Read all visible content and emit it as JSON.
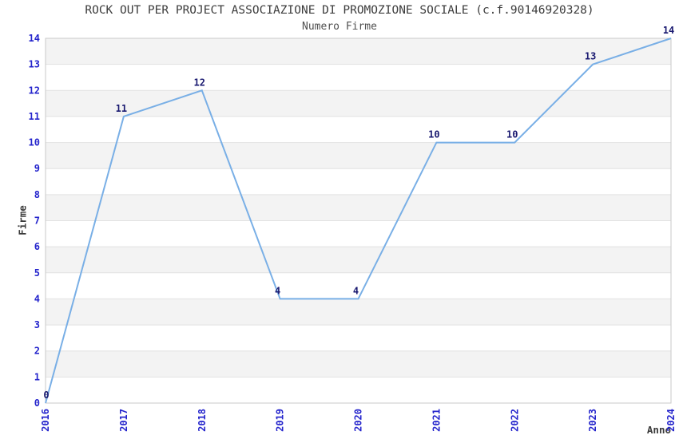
{
  "chart_data": {
    "type": "line",
    "title": "ROCK OUT PER PROJECT ASSOCIAZIONE DI PROMOZIONE SOCIALE (c.f.90146920328)",
    "subtitle": "Numero Firme",
    "xlabel": "Anno",
    "ylabel": "Firme",
    "categories": [
      "2016",
      "2017",
      "2018",
      "2019",
      "2020",
      "2021",
      "2022",
      "2023",
      "2024"
    ],
    "series": [
      {
        "name": "Numero Firme",
        "values": [
          0,
          11,
          12,
          4,
          4,
          10,
          10,
          13,
          14
        ]
      }
    ],
    "ylim": [
      0,
      14
    ],
    "ytick_step": 1,
    "grid": true,
    "background_bands": true,
    "data_labels_visible": true,
    "legend_position": "none",
    "x_tick_rotation": -90,
    "colors": {
      "line": "#79afe6",
      "tick_label": "#2424cc",
      "data_label": "#191970",
      "band_fill": "#f3f3f3",
      "gridline": "#e2e2e2",
      "plot_border": "#c9c9c9",
      "title_text": "#3c3c3c",
      "axis_label_text": "#3a3a3a",
      "plot_background": "#ffffff"
    }
  }
}
